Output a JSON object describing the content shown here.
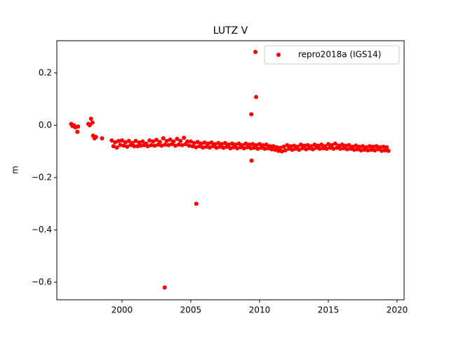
{
  "chart_data": {
    "type": "scatter",
    "title": "LUTZ V",
    "y_label": "m",
    "xlim": [
      1995.26,
      2020.51
    ],
    "ylim": [
      -0.667,
      0.323
    ],
    "xticks": [
      2000,
      2005,
      2010,
      2015,
      2020
    ],
    "yticks": [
      {
        "value": -0.6,
        "label": "−0.6"
      },
      {
        "value": -0.4,
        "label": "−0.4"
      },
      {
        "value": -0.2,
        "label": "−0.2"
      },
      {
        "value": 0,
        "label": "0.0"
      },
      0.2
    ],
    "legend": "upper right",
    "series": [
      {
        "name": "repro2018a (IGS14)",
        "color": "#ff0000",
        "x": [
          1996.3,
          1996.4,
          1996.5,
          1996.6,
          1996.75,
          1996.8,
          1997.55,
          1997.65,
          1997.75,
          1997.85,
          1997.9,
          1998.0,
          1998.1,
          1998.55,
          1999.25,
          1999.375,
          1999.5,
          1999.625,
          1999.75,
          1999.875,
          2000.0,
          2000.125,
          2000.25,
          2000.375,
          2000.5,
          2000.625,
          2000.75,
          2000.875,
          2001.0,
          2001.125,
          2001.25,
          2001.375,
          2001.5,
          2001.625,
          2001.75,
          2001.875,
          2002.0,
          2002.125,
          2002.25,
          2002.375,
          2002.5,
          2002.625,
          2002.75,
          2002.875,
          2003.0,
          2003.125,
          2003.25,
          2003.375,
          2003.5,
          2003.625,
          2003.75,
          2003.875,
          2004.0,
          2004.125,
          2004.25,
          2004.375,
          2004.5,
          2004.625,
          2004.75,
          2004.875,
          2005.0,
          2005.125,
          2005.25,
          2005.375,
          2005.5,
          2005.625,
          2005.75,
          2005.875,
          2006.0,
          2006.125,
          2006.25,
          2006.375,
          2006.5,
          2006.625,
          2006.75,
          2006.875,
          2007.0,
          2007.125,
          2007.25,
          2007.375,
          2007.5,
          2007.625,
          2007.75,
          2007.875,
          2008.0,
          2008.125,
          2008.25,
          2008.375,
          2008.5,
          2008.625,
          2008.75,
          2008.875,
          2009.0,
          2009.125,
          2009.25,
          2009.375,
          2009.5,
          2009.625,
          2009.75,
          2009.875,
          2010.0,
          2010.125,
          2010.25,
          2010.375,
          2010.5,
          2010.625,
          2010.75,
          2010.875,
          2011.0,
          2011.125,
          2011.25,
          2011.375,
          2011.5,
          2011.625,
          2011.75,
          2011.875,
          2012.0,
          2012.125,
          2012.25,
          2012.375,
          2012.5,
          2012.625,
          2012.75,
          2012.875,
          2013.0,
          2013.125,
          2013.25,
          2013.375,
          2013.5,
          2013.625,
          2013.75,
          2013.875,
          2014.0,
          2014.125,
          2014.25,
          2014.375,
          2014.5,
          2014.625,
          2014.75,
          2014.875,
          2015.0,
          2015.125,
          2015.25,
          2015.375,
          2015.5,
          2015.625,
          2015.75,
          2015.875,
          2016.0,
          2016.125,
          2016.25,
          2016.375,
          2016.5,
          2016.625,
          2016.75,
          2016.875,
          2017.0,
          2017.125,
          2017.25,
          2017.375,
          2017.5,
          2017.625,
          2017.75,
          2017.875,
          2018.0,
          2018.125,
          2018.25,
          2018.375,
          2018.5,
          2018.625,
          2018.75,
          2018.875,
          2019.0,
          2019.125,
          2019.25,
          2019.375,
          2003.1,
          2005.4,
          2009.4,
          2009.42,
          2009.7,
          2009.75
        ],
        "values": [
          0.005,
          -0.003,
          0.0,
          -0.008,
          -0.025,
          -0.005,
          0.005,
          0.0,
          0.025,
          0.01,
          -0.04,
          -0.05,
          -0.045,
          -0.05,
          -0.058,
          -0.08,
          -0.065,
          -0.085,
          -0.06,
          -0.075,
          -0.058,
          -0.078,
          -0.065,
          -0.082,
          -0.06,
          -0.075,
          -0.068,
          -0.08,
          -0.06,
          -0.08,
          -0.066,
          -0.078,
          -0.062,
          -0.076,
          -0.07,
          -0.08,
          -0.058,
          -0.076,
          -0.062,
          -0.078,
          -0.056,
          -0.074,
          -0.064,
          -0.078,
          -0.05,
          -0.074,
          -0.06,
          -0.076,
          -0.055,
          -0.072,
          -0.062,
          -0.078,
          -0.052,
          -0.074,
          -0.06,
          -0.076,
          -0.048,
          -0.072,
          -0.062,
          -0.078,
          -0.062,
          -0.08,
          -0.068,
          -0.084,
          -0.064,
          -0.08,
          -0.07,
          -0.085,
          -0.066,
          -0.082,
          -0.07,
          -0.085,
          -0.066,
          -0.08,
          -0.072,
          -0.086,
          -0.068,
          -0.082,
          -0.072,
          -0.086,
          -0.068,
          -0.082,
          -0.074,
          -0.088,
          -0.07,
          -0.084,
          -0.074,
          -0.088,
          -0.07,
          -0.084,
          -0.076,
          -0.088,
          -0.07,
          -0.084,
          -0.074,
          -0.088,
          -0.072,
          -0.086,
          -0.076,
          -0.09,
          -0.072,
          -0.086,
          -0.076,
          -0.09,
          -0.074,
          -0.088,
          -0.08,
          -0.092,
          -0.08,
          -0.094,
          -0.084,
          -0.098,
          -0.086,
          -0.1,
          -0.082,
          -0.096,
          -0.076,
          -0.09,
          -0.08,
          -0.094,
          -0.078,
          -0.09,
          -0.082,
          -0.094,
          -0.074,
          -0.088,
          -0.078,
          -0.092,
          -0.076,
          -0.088,
          -0.08,
          -0.092,
          -0.074,
          -0.086,
          -0.078,
          -0.09,
          -0.074,
          -0.088,
          -0.08,
          -0.09,
          -0.072,
          -0.086,
          -0.076,
          -0.09,
          -0.07,
          -0.086,
          -0.078,
          -0.09,
          -0.074,
          -0.088,
          -0.078,
          -0.092,
          -0.076,
          -0.09,
          -0.082,
          -0.094,
          -0.078,
          -0.092,
          -0.082,
          -0.096,
          -0.08,
          -0.094,
          -0.084,
          -0.096,
          -0.08,
          -0.094,
          -0.082,
          -0.096,
          -0.08,
          -0.092,
          -0.084,
          -0.098,
          -0.082,
          -0.096,
          -0.084,
          -0.098,
          -0.62,
          -0.3,
          0.042,
          -0.135,
          0.28,
          0.108
        ]
      }
    ]
  }
}
